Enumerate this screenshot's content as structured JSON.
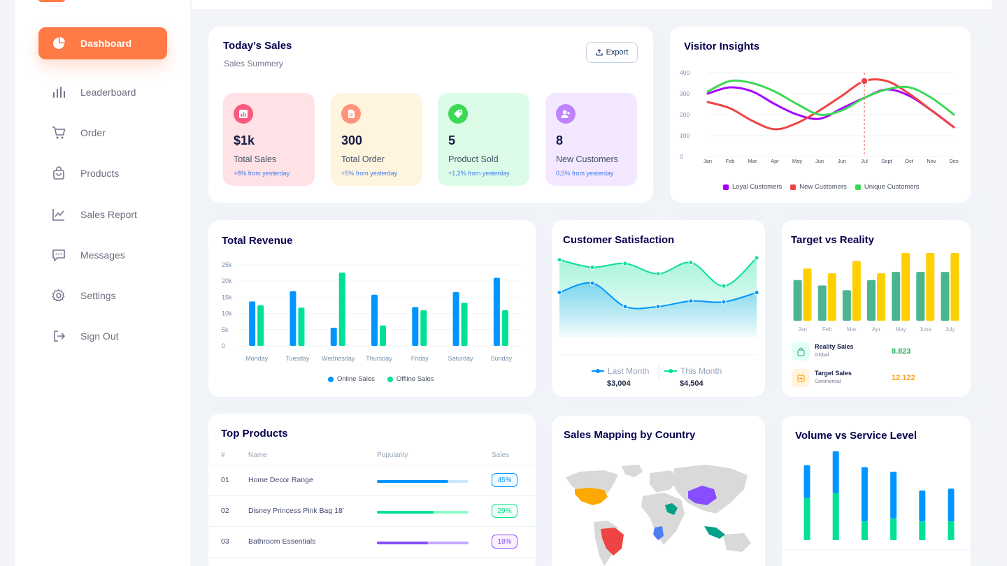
{
  "sidebar": {
    "items": [
      {
        "label": "Dashboard",
        "icon": "pie-chart-icon",
        "active": true
      },
      {
        "label": "Leaderboard",
        "icon": "bar-chart-icon"
      },
      {
        "label": "Order",
        "icon": "cart-icon"
      },
      {
        "label": "Products",
        "icon": "shopping-bag-icon"
      },
      {
        "label": "Sales Report",
        "icon": "line-chart-icon"
      },
      {
        "label": "Messages",
        "icon": "message-icon"
      },
      {
        "label": "Settings",
        "icon": "gear-icon"
      },
      {
        "label": "Sign Out",
        "icon": "sign-out-icon"
      }
    ]
  },
  "today_sales": {
    "title": "Today’s Sales",
    "subtitle": "Sales Summery",
    "export_label": "Export",
    "stats": [
      {
        "value": "$1k",
        "label": "Total Sales",
        "change": "+8% from yesterday",
        "bg": "#ffe2e5",
        "icon_bg": "#fa5a7d",
        "icon": "chart-icon"
      },
      {
        "value": "300",
        "label": "Total Order",
        "change": "+5% from yesterday",
        "bg": "#fff4de",
        "icon_bg": "#ff947a",
        "icon": "document-icon"
      },
      {
        "value": "5",
        "label": "Product Sold",
        "change": "+1,2% from yesterday",
        "bg": "#dcfce7",
        "icon_bg": "#3cd856",
        "icon": "tag-icon"
      },
      {
        "value": "8",
        "label": "New Customers",
        "change": "0,5% from yesterday",
        "bg": "#f3e8ff",
        "icon_bg": "#bf83ff",
        "icon": "add-user-icon"
      }
    ]
  },
  "visitor_insights": {
    "title": "Visitor Insights",
    "yticks": [
      "400",
      "300",
      "200",
      "100",
      "0"
    ],
    "months": [
      "Jan",
      "Feb",
      "Mar",
      "Apr",
      "May",
      "Jun",
      "Jun",
      "Jul",
      "Sept",
      "Oct",
      "Nov",
      "Des"
    ],
    "legend": [
      {
        "name": "Loyal Customers",
        "color": "#a700ff"
      },
      {
        "name": "New Customers",
        "color": "#ef4444"
      },
      {
        "name": "Unique Customers",
        "color": "#3cd856"
      }
    ]
  },
  "total_revenue": {
    "title": "Total Revenue",
    "legend": [
      {
        "name": "Online Sales",
        "color": "#0095ff"
      },
      {
        "name": "Offline Sales",
        "color": "#00e096"
      }
    ]
  },
  "customer_satisfaction": {
    "title": "Customer Satisfaction",
    "last_month_label": "Last Month",
    "this_month_label": "This Month",
    "last_month_value": "$3,004",
    "this_month_value": "$4,504"
  },
  "target_vs_reality": {
    "title": "Target vs Reality",
    "rows": [
      {
        "title": "Reality Sales",
        "sub": "Global",
        "value": "8.823",
        "color": "#27ae60",
        "bg": "#e2fff3",
        "icon": "bag-icon"
      },
      {
        "title": "Target Sales",
        "sub": "Commercial",
        "value": "12.122",
        "color": "#ffa412",
        "bg": "#fff4de",
        "icon": "ticket-icon"
      }
    ]
  },
  "top_products": {
    "title": "Top Products",
    "headers": {
      "num": "#",
      "name": "Name",
      "popularity": "Popularity",
      "sales": "Sales"
    },
    "rows": [
      {
        "num": "01",
        "name": "Home Decor Range",
        "percent": "45%",
        "fill": 0.78,
        "color": "#0095ff",
        "track": "#cde7ff",
        "badge_bg": "#f0f9ff"
      },
      {
        "num": "02",
        "name": "Disney Princess Pink Bag 18'",
        "percent": "29%",
        "fill": 0.62,
        "color": "#00e096",
        "track": "#8cfac7",
        "badge_bg": "#f0fdf4"
      },
      {
        "num": "03",
        "name": "Bathroom Essentials",
        "percent": "18%",
        "fill": 0.56,
        "color": "#884dff",
        "track": "#c5a8ff",
        "badge_bg": "#fbf1ff"
      }
    ]
  },
  "sales_mapping": {
    "title": "Sales Mapping by Country"
  },
  "volume_service": {
    "title": "Volume vs Service Level"
  },
  "chart_data": [
    {
      "type": "line",
      "title": "Visitor Insights",
      "x": [
        "Jan",
        "Feb",
        "Mar",
        "Apr",
        "May",
        "Jun",
        "Jun",
        "Jul",
        "Sept",
        "Oct",
        "Nov",
        "Des"
      ],
      "ylim": [
        0,
        400
      ],
      "series": [
        {
          "name": "Loyal Customers",
          "values": [
            300,
            330,
            310,
            250,
            200,
            180,
            230,
            280,
            320,
            290,
            220,
            140
          ]
        },
        {
          "name": "New Customers",
          "values": [
            260,
            230,
            170,
            130,
            160,
            220,
            290,
            360,
            360,
            300,
            220,
            140
          ]
        },
        {
          "name": "Unique Customers",
          "values": [
            310,
            360,
            350,
            310,
            250,
            200,
            220,
            280,
            320,
            330,
            280,
            200
          ]
        }
      ]
    },
    {
      "type": "bar",
      "title": "Total Revenue",
      "categories": [
        "Monday",
        "Tuesday",
        "Wednesday",
        "Thursday",
        "Friday",
        "Saturday",
        "Sunday"
      ],
      "yticks": [
        "25k",
        "20k",
        "15k",
        "10k",
        "5k",
        "0"
      ],
      "ylim": [
        0,
        25000
      ],
      "series": [
        {
          "name": "Online Sales",
          "values": [
            13700,
            16900,
            5600,
            15800,
            12000,
            16600,
            21000
          ]
        },
        {
          "name": "Offline Sales",
          "values": [
            12500,
            11800,
            22600,
            6300,
            11000,
            13300,
            11000
          ]
        }
      ]
    },
    {
      "type": "area",
      "title": "Customer Satisfaction",
      "ylim": [
        0,
        100
      ],
      "series": [
        {
          "name": "Last Month",
          "values": [
            48,
            58,
            33,
            33,
            39,
            38,
            48
          ]
        },
        {
          "name": "This Month",
          "values": [
            83,
            75,
            79,
            68,
            80,
            55,
            85
          ]
        }
      ]
    },
    {
      "type": "bar",
      "title": "Target vs Reality",
      "categories": [
        "Jan",
        "Feb",
        "Mar",
        "Apr",
        "May",
        "June",
        "July"
      ],
      "ylim": [
        0,
        100
      ],
      "series": [
        {
          "name": "Reality Sales",
          "values": [
            60,
            52,
            45,
            60,
            72,
            72,
            72
          ]
        },
        {
          "name": "Target Sales",
          "values": [
            77,
            70,
            88,
            70,
            100,
            100,
            100
          ]
        }
      ]
    },
    {
      "type": "bar",
      "title": "Volume vs Service Level",
      "ylim": [
        0,
        100
      ],
      "series": [
        {
          "name": "Volume",
          "values": [
            35,
            45,
            58,
            50,
            33,
            35
          ]
        },
        {
          "name": "Services",
          "values": [
            45,
            50,
            20,
            23,
            20,
            20
          ]
        }
      ]
    }
  ]
}
